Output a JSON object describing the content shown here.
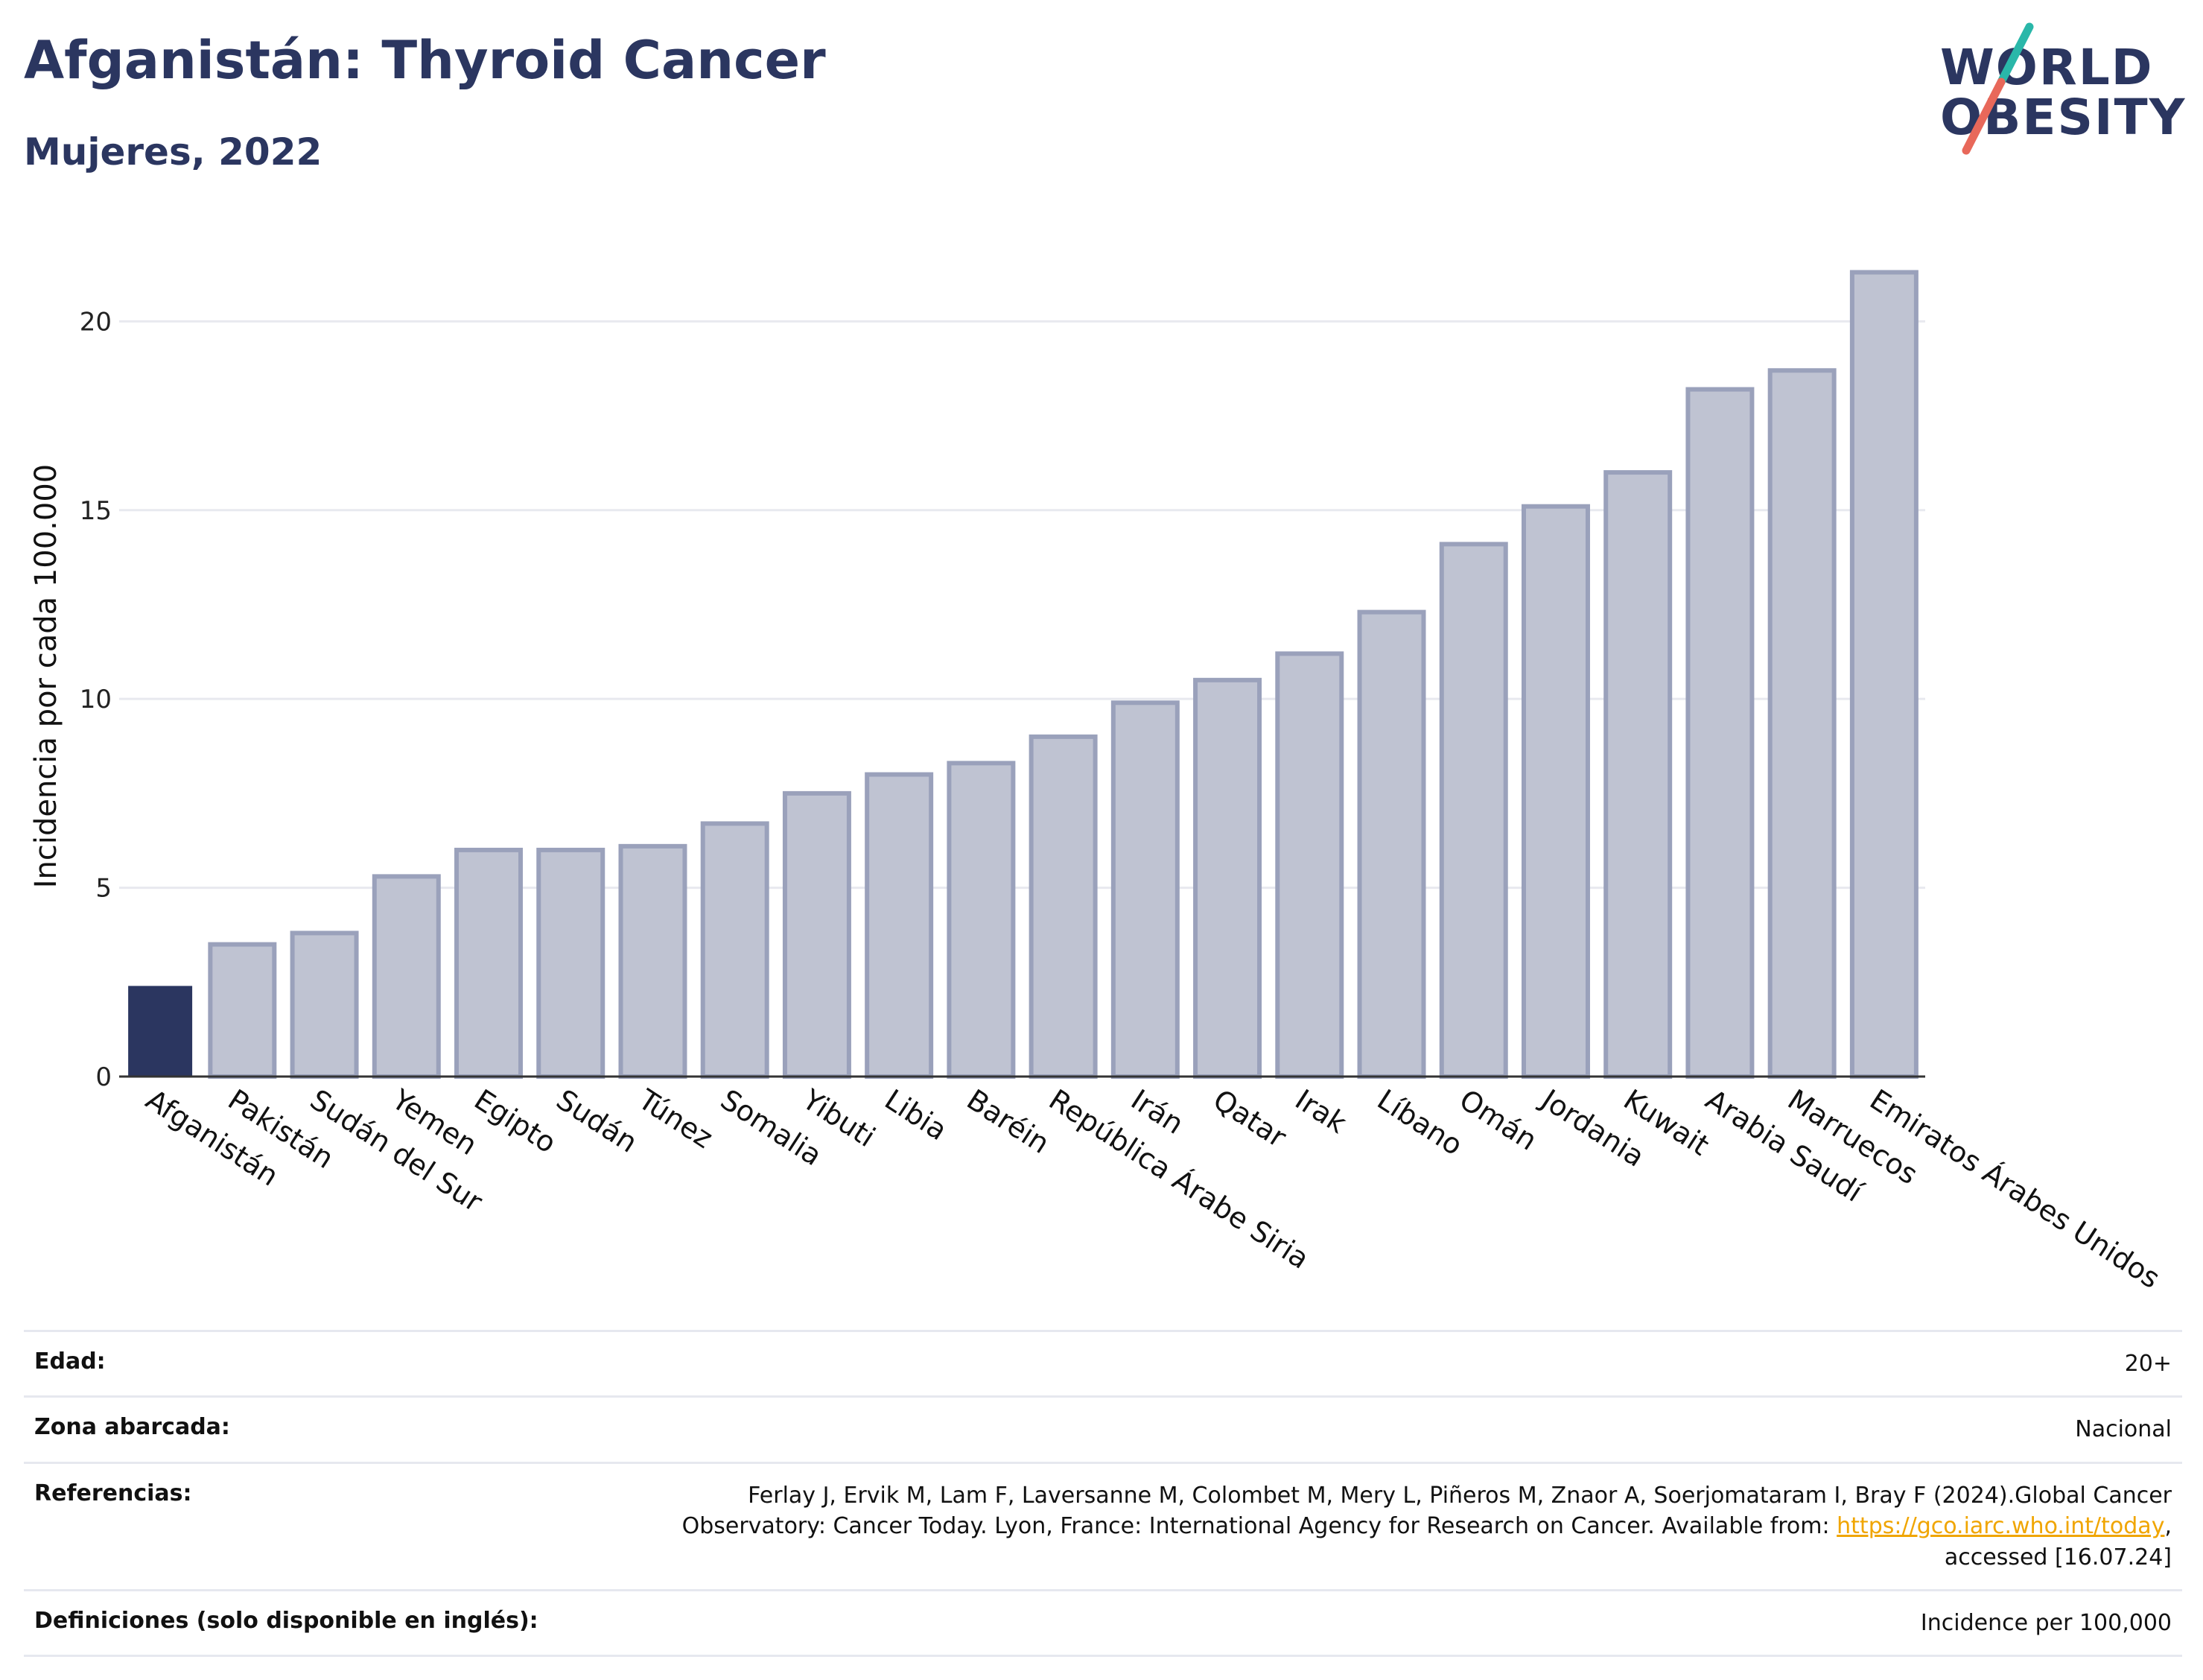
{
  "header": {
    "title": "Afganistán: Thyroid Cancer",
    "subtitle": "Mujeres, 2022"
  },
  "logo": {
    "line1": "WORLD",
    "line2": "OBESITY",
    "colors": {
      "text": "#2b3660",
      "slash_top": "#2ab7a9",
      "slash_bottom": "#e8685a"
    }
  },
  "colors": {
    "highlight_bar": "#2b3660",
    "other_bar_fill": "#bfc3d2",
    "other_bar_stroke": "#9aa1bb",
    "gridline": "#e8e9ef",
    "axis": "#333333",
    "link": "#f0a500"
  },
  "chart_data": {
    "type": "bar",
    "title": "Afganistán: Thyroid Cancer",
    "subtitle": "Mujeres, 2022",
    "xlabel": "",
    "ylabel": "Incidencia por cada 100.000",
    "ylim": [
      0,
      22
    ],
    "yticks": [
      0,
      5,
      10,
      15,
      20
    ],
    "grid": true,
    "highlight": "Afganistán",
    "categories": [
      "Afganistán",
      "Pakistán",
      "Sudán del Sur",
      "Yemen",
      "Egipto",
      "Sudán",
      "Túnez",
      "Somalia",
      "Yibuti",
      "Libia",
      "Baréin",
      "República Árabe Siria",
      "Irán",
      "Qatar",
      "Irak",
      "Líbano",
      "Omán",
      "Jordania",
      "Kuwait",
      "Arabia Saudí",
      "Marruecos",
      "Emiratos Árabes Unidos"
    ],
    "values": [
      2.4,
      3.5,
      3.8,
      5.3,
      6.0,
      6.0,
      6.1,
      6.7,
      7.5,
      8.0,
      8.3,
      9.0,
      9.9,
      10.5,
      11.2,
      12.3,
      14.1,
      15.1,
      16.0,
      18.2,
      18.7,
      21.3
    ]
  },
  "footer": {
    "rows": [
      {
        "label": "Edad:",
        "value": "20+"
      },
      {
        "label": "Zona abarcada:",
        "value": "Nacional"
      },
      {
        "label": "Referencias:",
        "value_line1": "Ferlay J, Ervik M, Lam F, Laversanne M, Colombet M, Mery L, Piñeros M, Znaor A, Soerjomataram I, Bray F (2024).Global Cancer",
        "value_line2_pre": "Observatory: Cancer Today. Lyon, France: International Agency for Research on Cancer. Available from: ",
        "value_link": "https://gco.iarc.who.int/today",
        "value_line2_post": ",",
        "value_line3": "accessed [16.07.24]"
      },
      {
        "label": "Definiciones (solo disponible en inglés):",
        "value": "Incidence per 100,000"
      }
    ]
  }
}
